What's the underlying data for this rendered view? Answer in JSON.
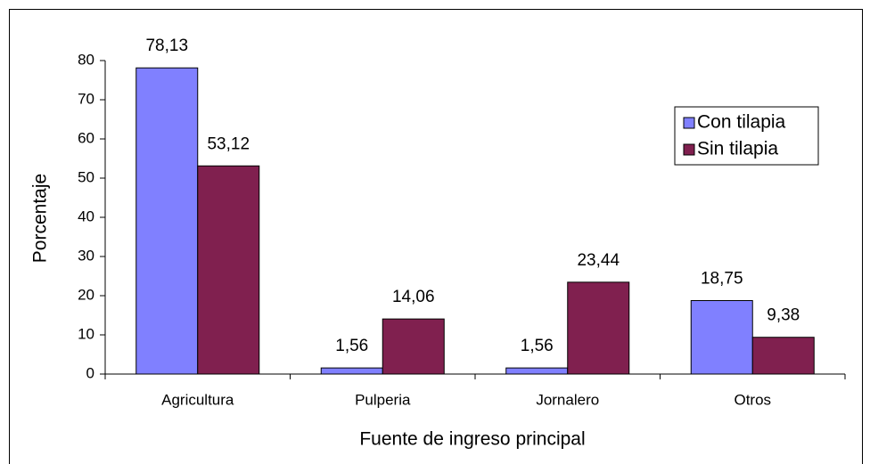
{
  "chart_data": {
    "type": "bar",
    "x_label": "Fuente de ingreso principal",
    "y_label": "Porcentaje",
    "categories": [
      "Agricultura",
      "Pulperia",
      "Jornalero",
      "Otros"
    ],
    "series": [
      {
        "name": "Con tilapia",
        "color": "#8080ff",
        "values": [
          78.13,
          1.56,
          1.56,
          18.75
        ],
        "value_labels": [
          "78,13",
          "1,56",
          "1,56",
          "18,75"
        ]
      },
      {
        "name": "Sin tilapia",
        "color": "#80204f",
        "values": [
          53.12,
          14.06,
          23.44,
          9.38
        ],
        "value_labels": [
          "53,12",
          "14,06",
          "23,44",
          "9,38"
        ]
      }
    ],
    "ylim": [
      0,
      80
    ],
    "yticks": [
      0,
      10,
      20,
      30,
      40,
      50,
      60,
      70,
      80
    ],
    "grid": false,
    "legend": "upper right"
  }
}
